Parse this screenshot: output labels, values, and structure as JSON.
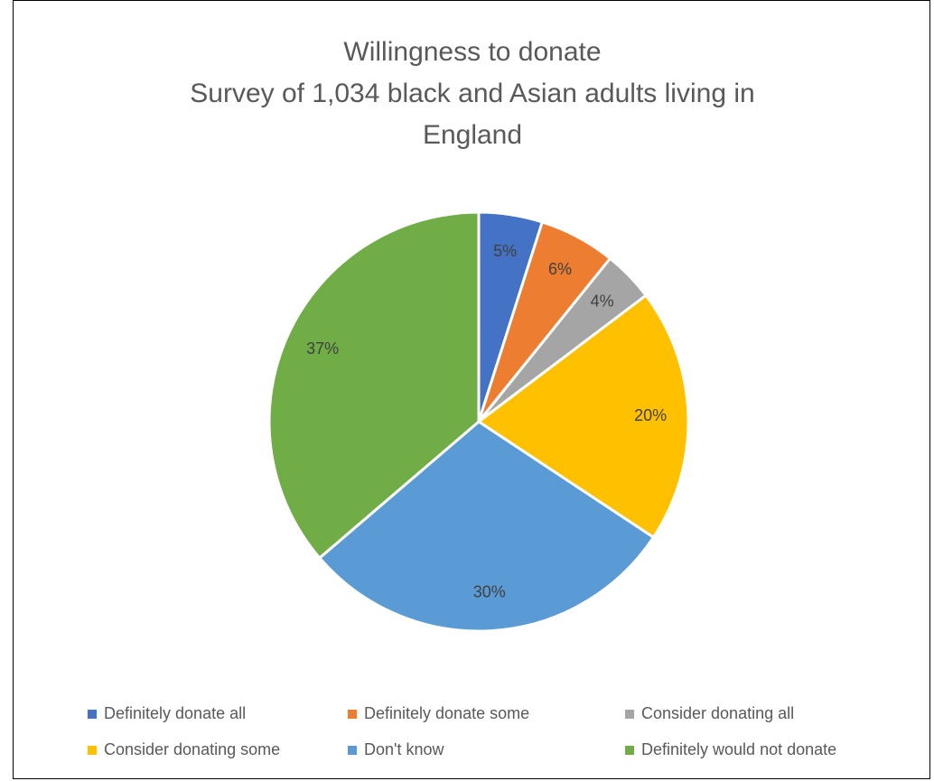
{
  "chart_data": {
    "type": "pie",
    "title_lines": [
      "Willingness to donate",
      "Survey of 1,034 black and Asian adults living in",
      "England"
    ],
    "unit": "%",
    "legend_position": "bottom",
    "slices": [
      {
        "label": "Definitely donate all",
        "value": 5,
        "color": "#4472C4",
        "label_text": "5%"
      },
      {
        "label": "Definitely donate some",
        "value": 6,
        "color": "#ED7D31",
        "label_text": "6%"
      },
      {
        "label": "Consider donating all",
        "value": 4,
        "color": "#A5A5A5",
        "label_text": "4%"
      },
      {
        "label": "Consider donating some",
        "value": 20,
        "color": "#FFC000",
        "label_text": "20%"
      },
      {
        "label": "Don't know",
        "value": 30,
        "color": "#5B9BD5",
        "label_text": "30%"
      },
      {
        "label": "Definitely would not donate",
        "value": 37,
        "color": "#70AD47",
        "label_text": "37%"
      }
    ]
  }
}
